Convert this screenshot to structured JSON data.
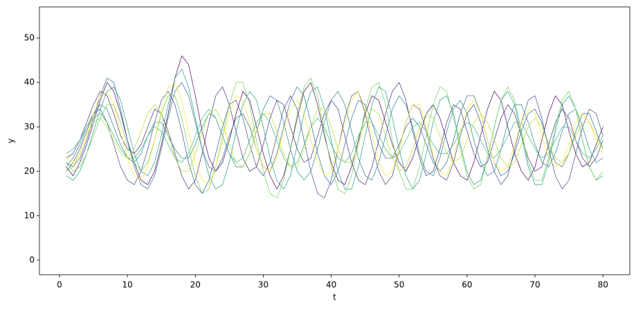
{
  "chart_data": {
    "type": "line",
    "x_label": "t",
    "y_label": "y",
    "x": [
      1,
      2,
      3,
      4,
      5,
      6,
      7,
      8,
      9,
      10,
      11,
      12,
      13,
      14,
      15,
      16,
      17,
      18,
      19,
      20,
      21,
      22,
      23,
      24,
      25,
      26,
      27,
      28,
      29,
      30,
      31,
      32,
      33,
      34,
      35,
      36,
      37,
      38,
      39,
      40,
      41,
      42,
      43,
      44,
      45,
      46,
      47,
      48,
      49,
      50,
      51,
      52,
      53,
      54,
      55,
      56,
      57,
      58,
      59,
      60,
      61,
      62,
      63,
      64,
      65,
      66,
      67,
      68,
      69,
      70,
      71,
      72,
      73,
      74,
      75,
      76,
      77,
      78,
      79,
      80
    ],
    "xlim": [
      -2.95,
      83.95
    ],
    "xticks": [
      0,
      10,
      20,
      30,
      40,
      50,
      60,
      70,
      80
    ],
    "ylim": [
      -3.27,
      57.0
    ],
    "yticks": [
      0,
      10,
      20,
      30,
      40,
      50
    ],
    "line_width": 0.7,
    "series": [
      {
        "color": "#440154",
        "values": [
          21,
          19,
          22,
          26,
          31,
          36,
          40,
          38,
          33,
          27,
          22,
          18,
          17,
          20,
          26,
          33,
          41,
          46,
          44,
          37,
          29,
          23,
          20,
          22,
          27,
          33,
          38,
          36,
          30,
          24,
          19,
          16,
          19,
          25,
          32,
          38,
          40,
          35,
          28,
          22,
          18,
          17,
          21,
          27,
          33,
          37,
          36,
          31,
          26,
          22,
          20,
          23,
          28,
          33,
          35,
          32,
          27,
          22,
          19,
          18,
          22,
          28,
          34,
          38,
          36,
          30,
          24,
          20,
          18,
          21,
          27,
          33,
          37,
          35,
          29,
          24,
          21,
          22,
          26,
          30
        ]
      },
      {
        "color": "#482878",
        "values": [
          23,
          24,
          27,
          31,
          35,
          38,
          37,
          33,
          28,
          25,
          24,
          26,
          30,
          34,
          33,
          29,
          24,
          19,
          16,
          18,
          24,
          31,
          37,
          39,
          35,
          29,
          23,
          20,
          21,
          26,
          32,
          36,
          35,
          30,
          25,
          22,
          23,
          28,
          33,
          36,
          34,
          28,
          22,
          18,
          17,
          21,
          27,
          33,
          38,
          40,
          36,
          29,
          23,
          19,
          20,
          25,
          31,
          35,
          34,
          29,
          24,
          21,
          22,
          27,
          32,
          35,
          33,
          28,
          23,
          20,
          21,
          26,
          31,
          34,
          32,
          27,
          23,
          21,
          23,
          27
        ]
      },
      {
        "color": "#3e4989",
        "values": [
          20,
          22,
          25,
          29,
          33,
          34,
          31,
          26,
          21,
          18,
          17,
          20,
          25,
          31,
          36,
          38,
          35,
          29,
          22,
          17,
          15,
          18,
          24,
          30,
          35,
          36,
          32,
          26,
          21,
          19,
          22,
          28,
          34,
          37,
          34,
          27,
          20,
          15,
          14,
          18,
          25,
          32,
          37,
          38,
          33,
          26,
          20,
          17,
          19,
          25,
          31,
          35,
          34,
          29,
          23,
          19,
          18,
          22,
          28,
          33,
          35,
          31,
          25,
          20,
          17,
          19,
          25,
          31,
          36,
          37,
          32,
          25,
          19,
          16,
          18,
          24,
          30,
          34,
          33,
          28
        ]
      },
      {
        "color": "#31688e",
        "values": [
          22,
          21,
          23,
          27,
          32,
          37,
          41,
          40,
          34,
          27,
          21,
          17,
          16,
          19,
          25,
          32,
          38,
          40,
          37,
          31,
          25,
          21,
          20,
          23,
          28,
          32,
          33,
          30,
          25,
          21,
          20,
          24,
          30,
          36,
          39,
          37,
          31,
          24,
          19,
          17,
          20,
          26,
          32,
          36,
          35,
          31,
          26,
          23,
          23,
          26,
          30,
          32,
          30,
          26,
          22,
          20,
          22,
          27,
          33,
          37,
          37,
          33,
          27,
          22,
          19,
          20,
          24,
          29,
          33,
          34,
          31,
          26,
          22,
          21,
          24,
          29,
          33,
          33,
          29,
          25
        ]
      },
      {
        "color": "#26828e",
        "values": [
          21,
          23,
          26,
          30,
          33,
          35,
          34,
          30,
          26,
          23,
          22,
          24,
          28,
          31,
          31,
          28,
          25,
          23,
          23,
          26,
          30,
          33,
          32,
          28,
          24,
          21,
          21,
          24,
          29,
          34,
          37,
          36,
          31,
          25,
          20,
          18,
          20,
          25,
          31,
          36,
          38,
          35,
          29,
          23,
          19,
          18,
          22,
          28,
          34,
          37,
          35,
          30,
          24,
          20,
          19,
          23,
          29,
          34,
          36,
          33,
          27,
          22,
          19,
          20,
          25,
          31,
          35,
          35,
          31,
          26,
          22,
          21,
          24,
          29,
          33,
          34,
          30,
          25,
          22,
          23
        ]
      },
      {
        "color": "#1f9e89",
        "values": [
          19,
          18,
          20,
          24,
          29,
          34,
          38,
          39,
          36,
          30,
          24,
          20,
          19,
          22,
          28,
          35,
          41,
          43,
          39,
          32,
          25,
          19,
          16,
          17,
          22,
          29,
          35,
          38,
          36,
          30,
          23,
          18,
          16,
          19,
          26,
          33,
          38,
          39,
          34,
          27,
          20,
          16,
          16,
          21,
          28,
          35,
          39,
          38,
          32,
          25,
          19,
          16,
          18,
          24,
          31,
          36,
          37,
          33,
          26,
          20,
          17,
          18,
          23,
          30,
          36,
          38,
          35,
          28,
          21,
          17,
          17,
          22,
          29,
          35,
          37,
          34,
          27,
          21,
          18,
          19
        ]
      },
      {
        "color": "#35b779",
        "values": [
          24,
          25,
          27,
          30,
          32,
          33,
          31,
          28,
          25,
          23,
          23,
          25,
          28,
          30,
          29,
          26,
          23,
          22,
          24,
          28,
          32,
          34,
          32,
          28,
          24,
          22,
          23,
          27,
          31,
          33,
          31,
          27,
          23,
          21,
          22,
          26,
          30,
          32,
          30,
          26,
          23,
          22,
          24,
          28,
          31,
          31,
          28,
          25,
          23,
          24,
          27,
          30,
          31,
          29,
          26,
          24,
          24,
          26,
          29,
          31,
          30,
          27,
          24,
          23,
          25,
          28,
          31,
          31,
          28,
          25,
          23,
          24,
          27,
          30,
          30,
          27,
          24,
          23,
          25,
          28
        ]
      },
      {
        "color": "#6ece58",
        "values": [
          22,
          20,
          21,
          24,
          28,
          32,
          35,
          35,
          31,
          26,
          22,
          20,
          22,
          27,
          33,
          37,
          37,
          32,
          25,
          19,
          15,
          16,
          21,
          28,
          35,
          40,
          40,
          35,
          27,
          20,
          15,
          14,
          18,
          25,
          33,
          39,
          41,
          37,
          29,
          21,
          16,
          15,
          19,
          26,
          34,
          39,
          40,
          35,
          27,
          20,
          16,
          16,
          21,
          28,
          35,
          39,
          38,
          32,
          25,
          19,
          16,
          17,
          23,
          30,
          36,
          39,
          36,
          29,
          22,
          18,
          18,
          23,
          30,
          36,
          38,
          34,
          27,
          21,
          18,
          20
        ]
      },
      {
        "color": "#b5de2b",
        "values": [
          20,
          21,
          24,
          28,
          31,
          32,
          30,
          27,
          24,
          23,
          25,
          29,
          33,
          35,
          33,
          28,
          23,
          20,
          20,
          24,
          29,
          33,
          34,
          31,
          26,
          22,
          21,
          24,
          29,
          33,
          33,
          29,
          24,
          21,
          21,
          25,
          30,
          34,
          34,
          30,
          25,
          22,
          22,
          26,
          31,
          34,
          33,
          28,
          23,
          20,
          21,
          25,
          30,
          33,
          32,
          28,
          24,
          22,
          23,
          27,
          31,
          33,
          31,
          27,
          23,
          21,
          22,
          26,
          30,
          32,
          30,
          26,
          23,
          22,
          24,
          28,
          31,
          31,
          28,
          25
        ]
      },
      {
        "color": "#fde725",
        "values": [
          23,
          22,
          24,
          28,
          33,
          37,
          38,
          35,
          29,
          23,
          19,
          18,
          21,
          27,
          34,
          39,
          40,
          36,
          29,
          22,
          18,
          17,
          21,
          27,
          33,
          37,
          36,
          31,
          25,
          21,
          20,
          23,
          29,
          34,
          36,
          33,
          27,
          22,
          19,
          20,
          25,
          31,
          36,
          38,
          34,
          28,
          22,
          19,
          20,
          25,
          31,
          35,
          35,
          30,
          24,
          20,
          19,
          23,
          29,
          34,
          36,
          33,
          27,
          22,
          20,
          21,
          26,
          31,
          34,
          33,
          28,
          23,
          21,
          22,
          26,
          31,
          33,
          31,
          27,
          24
        ]
      }
    ]
  }
}
